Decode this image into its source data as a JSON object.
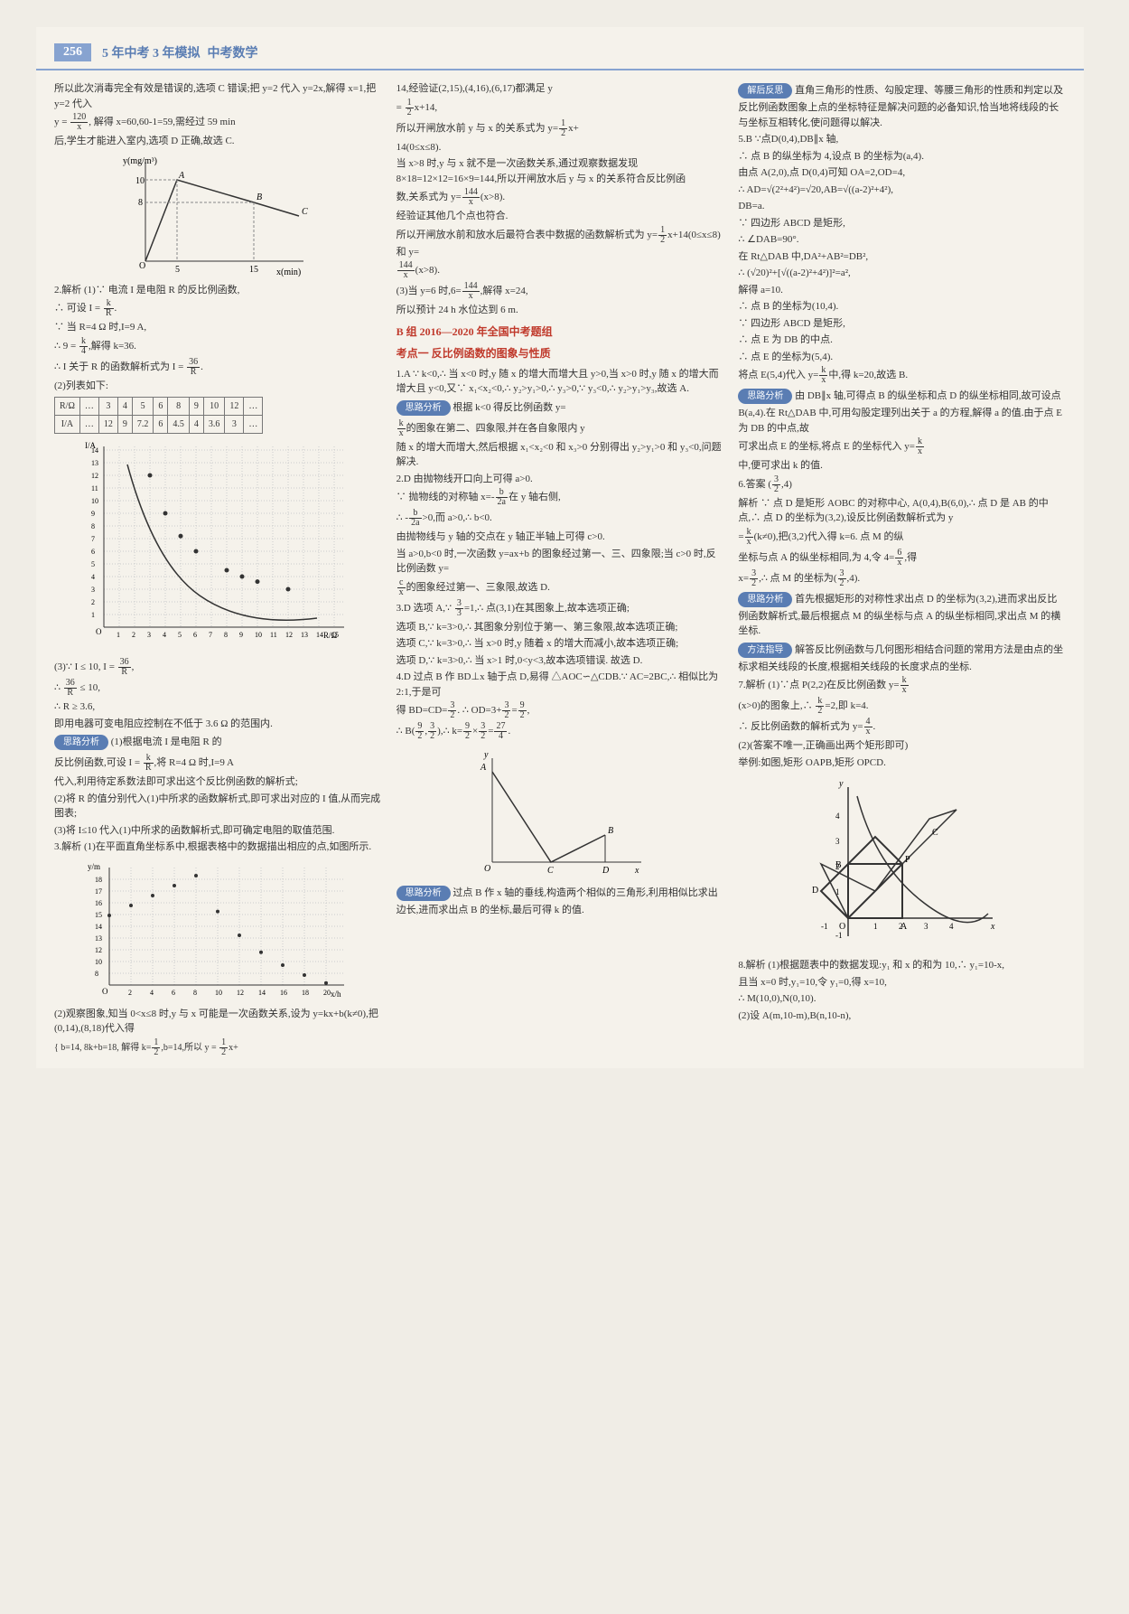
{
  "header": {
    "page_number": "256",
    "title_main": "5 年中考 3 年模拟",
    "title_sub": "中考数学"
  },
  "col1": {
    "p1": "所以此次消毒完全有效是错误的,选项 C 错误;把 y=2 代入 y=2x,解得 x=1,把 y=2 代入",
    "p2_a": "y = ",
    "p2_frac": {
      "num": "120",
      "den": "x"
    },
    "p2_b": ", 解得 x=60,60-1=59,需经过 59 min",
    "p3": "后,学生才能进入室内,选项 D 正确,故选 C.",
    "graph1": {
      "ylabel": "y(mg/m³)",
      "xlabel": "x(min)",
      "ypoints": [
        10,
        8
      ],
      "xticks": [
        5,
        15
      ],
      "labels": [
        "A",
        "B",
        "C"
      ],
      "line_color": "#333",
      "bg": "#f5f2eb",
      "grid_color": "#888"
    },
    "p4": "2.解析 (1)∵ 电流 I 是电阻 R 的反比例函数,",
    "p5_a": "∴ 可设 I = ",
    "p5_frac": {
      "num": "k",
      "den": "R"
    },
    "p5_b": ".",
    "p6": "∵ 当 R=4 Ω 时,I=9 A,",
    "p7_a": "∴ 9 = ",
    "p7_frac": {
      "num": "k",
      "den": "4"
    },
    "p7_b": ",解得 k=36.",
    "p8_a": "∴ I 关于 R 的函数解析式为 I = ",
    "p8_frac": {
      "num": "36",
      "den": "R"
    },
    "p8_b": ".",
    "p9": "(2)列表如下:",
    "table": {
      "headers": [
        "R/Ω",
        "…",
        "3",
        "4",
        "5",
        "6",
        "8",
        "9",
        "10",
        "12",
        "…"
      ],
      "row": [
        "I/A",
        "…",
        "12",
        "9",
        "7.2",
        "6",
        "4.5",
        "4",
        "3.6",
        "3",
        "…"
      ]
    },
    "graph2": {
      "ylabel": "I/A",
      "xlabel": "R/Ω",
      "yticks": [
        1,
        2,
        3,
        4,
        5,
        6,
        7,
        8,
        9,
        10,
        11,
        12,
        13,
        14
      ],
      "xticks": [
        1,
        2,
        3,
        4,
        5,
        6,
        7,
        8,
        9,
        10,
        11,
        12,
        13,
        14,
        15
      ],
      "points": [
        [
          3,
          12
        ],
        [
          4,
          9
        ],
        [
          5,
          7.2
        ],
        [
          6,
          6
        ],
        [
          8,
          4.5
        ],
        [
          9,
          4
        ],
        [
          10,
          3.6
        ],
        [
          12,
          3
        ]
      ],
      "curve_color": "#333",
      "grid_color": "#ccc"
    },
    "p10_a": "(3)∵ I ≤ 10, I = ",
    "p10_frac": {
      "num": "36",
      "den": "R"
    },
    "p10_b": ",",
    "p11_a": "∴ ",
    "p11_frac": {
      "num": "36",
      "den": "R"
    },
    "p11_b": " ≤ 10,",
    "p12": "∴ R ≥ 3.6,",
    "p13": "即用电器可变电阻应控制在不低于 3.6 Ω 的范围内.",
    "pill1": "思路分析",
    "p14": "(1)根据电流 I 是电阻 R 的",
    "p15_a": "反比例函数,可设 I = ",
    "p15_frac": {
      "num": "k",
      "den": "R"
    },
    "p15_b": ",将 R=4 Ω 时,I=9 A",
    "p16": "代入,利用待定系数法即可求出这个反比例函数的解析式;",
    "p17": "(2)将 R 的值分别代入(1)中所求的函数解析式,即可求出对应的 I 值,从而完成图表;",
    "p18": "(3)将 I≤10 代入(1)中所求的函数解析式,即可确定电阻的取值范围.",
    "p19": "3.解析 (1)在平面直角坐标系中,根据表格中的数据描出相应的点,如图所示.",
    "graph3": {
      "ylabel": "y/m",
      "xlabel": "x/h",
      "yticks": [
        8,
        10,
        12,
        13,
        14,
        15,
        16,
        17,
        18
      ],
      "xticks": [
        2,
        4,
        6,
        8,
        10,
        12,
        14,
        16,
        18,
        20
      ],
      "grid_color": "#ccc",
      "line_color": "#333"
    },
    "p20": "(2)观察图象,知当 0<x≤8 时,y 与 x 可能是一次函数关系,设为 y=kx+b(k≠0),把(0,14),(8,18)代入得",
    "p21_a": "{ b=14, 8k+b=18, 解得 k=",
    "p21_frac": {
      "num": "1",
      "den": "2"
    },
    "p21_b": ",b=14,所以 y = ",
    "p21_frac2": {
      "num": "1",
      "den": "2"
    },
    "p21_c": "x+"
  },
  "col2": {
    "p1": "14,经验证(2,15),(4,16),(6,17)都满足 y",
    "p2_a": "= ",
    "p2_frac": {
      "num": "1",
      "den": "2"
    },
    "p2_b": "x+14,",
    "p3_a": "所以开闸放水前 y 与 x 的关系式为 y=",
    "p3_frac": {
      "num": "1",
      "den": "2"
    },
    "p3_b": "x+",
    "p4": "14(0≤x≤8).",
    "p5": "当 x>8 时,y 与 x 就不是一次函数关系,通过观察数据发现 8×18=12×12=16×9=144,所以开闸放水后 y 与 x 的关系符合反比例函",
    "p6_a": "数,关系式为 y=",
    "p6_frac": {
      "num": "144",
      "den": "x"
    },
    "p6_b": "(x>8).",
    "p7": "经验证其他几个点也符合.",
    "p8_a": "所以开闸放水前和放水后最符合表中数据的函数解析式为 y=",
    "p8_frac": {
      "num": "1",
      "den": "2"
    },
    "p8_b": "x+14(0≤x≤8) 和 y=",
    "p9_frac": {
      "num": "144",
      "den": "x"
    },
    "p9_b": "(x>8).",
    "p10_a": "(3)当 y=6 时,6=",
    "p10_frac": {
      "num": "144",
      "den": "x"
    },
    "p10_b": ",解得 x=24,",
    "p11": "所以预计 24 h 水位达到 6 m.",
    "section_b": "B 组  2016—2020 年全国中考题组",
    "section_b2": "考点一  反比例函数的图象与性质",
    "p12": "1.A  ∵ k<0,∴ 当 x<0 时,y 随 x 的增大而增大且 y>0,当 x>0 时,y 随 x 的增大而增大且 y<0,又∵ x₁<x₂<0,∴ y₂>y₁>0,∴ y₃>0,∵ y₃<0,∴ y₂>y₁>y₃,故选 A.",
    "pill2": "思路分析",
    "p13_a": "根据 k<0 得反比例函数 y=",
    "p14_frac": {
      "num": "k",
      "den": "x"
    },
    "p14_b": "的图象在第二、四象限,并在各自象限内 y",
    "p15": "随 x 的增大而增大,然后根据 x₁<x₂<0 和 x₃>0 分别得出 y₂>y₁>0 和 y₃<0,问题解决.",
    "p16": "2.D  由抛物线开口向上可得 a>0.",
    "p17_a": "∵ 抛物线的对称轴 x=-",
    "p17_frac": {
      "num": "b",
      "den": "2a"
    },
    "p17_b": "在 y 轴右侧,",
    "p18_a": "∴ -",
    "p18_frac": {
      "num": "b",
      "den": "2a"
    },
    "p18_b": ">0,而 a>0,∴ b<0.",
    "p19": "由抛物线与 y 轴的交点在 y 轴正半轴上可得 c>0.",
    "p20_a": "当 a>0,b<0 时,一次函数 y=ax+b 的图象经过第一、三、四象限;当 c>0 时,反比例函数 y=",
    "p21_frac": {
      "num": "c",
      "den": "x"
    },
    "p21_b": "的图象经过第一、三象限,故选 D.",
    "p22_a": "3.D  选项 A,∵ ",
    "p22_frac": {
      "num": "3",
      "den": "3"
    },
    "p22_b": "=1,∴ 点(3,1)在其图象上,故本选项正确;",
    "p23": "选项 B,∵ k=3>0,∴ 其图象分别位于第一、第三象限,故本选项正确;",
    "p24": "选项 C,∵ k=3>0,∴ 当 x>0 时,y 随着 x 的增大而减小,故本选项正确;",
    "p25": "选项 D,∵ k=3>0,∴ 当 x>1 时,0<y<3,故本选项错误. 故选 D.",
    "p26": "4.D  过点 B 作 BD⊥x 轴于点 D,易得 △AOC∽△CDB.∵ AC=2BC,∴ 相似比为 2:1,于是可",
    "p27_a": "得 BD=CD=",
    "p27_frac": {
      "num": "3",
      "den": "2"
    },
    "p27_b": ". ∴ OD=3+",
    "p27_frac2": {
      "num": "3",
      "den": "2"
    },
    "p27_c": "=",
    "p27_frac3": {
      "num": "9",
      "den": "2"
    },
    "p27_d": ",",
    "p28_a": "∴ B(",
    "p28_frac": {
      "num": "9",
      "den": "2"
    },
    "p28_b": ",",
    "p28_frac2": {
      "num": "3",
      "den": "2"
    },
    "p28_c": "),∴ k=",
    "p28_frac3": {
      "num": "9",
      "den": "2"
    },
    "p28_d": "×",
    "p28_frac4": {
      "num": "3",
      "den": "2"
    },
    "p28_e": "=",
    "p28_frac5": {
      "num": "27",
      "den": "4"
    },
    "p28_f": ".",
    "graph4": {
      "labels": [
        "A",
        "B",
        "O",
        "C",
        "D",
        "x",
        "y"
      ],
      "line_color": "#333"
    },
    "pill3": "思路分析",
    "p29": "过点 B 作 x 轴的垂线,构造两个相似的三角形,利用相似比求出边长,进而求出点 B 的坐标,最后可得 k 的值."
  },
  "col3": {
    "pill1": "解后反思",
    "p1": "直角三角形的性质、勾股定理、等腰三角形的性质和判定以及反比例函数图象上点的坐标特征是解决问题的必备知识,恰当地将线段的长与坐标互相转化,使问题得以解决.",
    "p2": "5.B  ∵点D(0,4),DB∥x 轴,",
    "p3": "∴ 点 B 的纵坐标为 4,设点 B 的坐标为(a,4).",
    "p4": "由点 A(2,0),点 D(0,4)可知 OA=2,OD=4,",
    "p5": "∴ AD=√(2²+4²)=√20,AB=√((a-2)²+4²),",
    "p6": "DB=a.",
    "p7": "∵ 四边形 ABCD 是矩形,",
    "p8": "∴ ∠DAB=90°.",
    "p9": "在 Rt△DAB 中,DA²+AB²=DB²,",
    "p10": "∴ (√20)²+[√((a-2)²+4²)]²=a²,",
    "p11": "解得 a=10.",
    "p12": "∴ 点 B 的坐标为(10,4).",
    "p13": "∵ 四边形 ABCD 是矩形,",
    "p14": "∴ 点 E 为 DB 的中点.",
    "p15": "∴ 点 E 的坐标为(5,4).",
    "p16_a": "将点 E(5,4)代入 y=",
    "p16_frac": {
      "num": "k",
      "den": "x"
    },
    "p16_b": "中,得 k=20,故选 B.",
    "pill2": "思路分析",
    "p17": "由 DB∥x 轴,可得点 B 的纵坐标和点 D 的纵坐标相同,故可设点 B(a,4).在 Rt△DAB 中,可用勾股定理列出关于 a 的方程,解得 a 的值.由于点 E 为 DB 的中点,故",
    "p18_a": "可求出点 E 的坐标,将点 E 的坐标代入 y=",
    "p18_frac": {
      "num": "k",
      "den": "x"
    },
    "p19": "中,便可求出 k 的值.",
    "p20_a": "6.答案  (",
    "p20_frac": {
      "num": "3",
      "den": "2"
    },
    "p20_b": ",4)",
    "p21": "解析 ∵ 点 D 是矩形 AOBC 的对称中心, A(0,4),B(6,0),∴ 点 D 是 AB 的中点,∴ 点 D 的坐标为(3,2),设反比例函数解析式为 y",
    "p22_a": "=",
    "p22_frac": {
      "num": "k",
      "den": "x"
    },
    "p22_b": "(k≠0),把(3,2)代入得 k=6. 点 M 的纵",
    "p23_a": "坐标与点 A 的纵坐标相同,为 4,令 4=",
    "p23_frac": {
      "num": "6",
      "den": "x"
    },
    "p23_b": ",得",
    "p24_a": "x=",
    "p24_frac": {
      "num": "3",
      "den": "2"
    },
    "p24_b": ",∴ 点 M 的坐标为(",
    "p24_frac2": {
      "num": "3",
      "den": "2"
    },
    "p24_c": ",4).",
    "pill3": "思路分析",
    "p25": "首先根据矩形的对称性求出点 D 的坐标为(3,2),进而求出反比例函数解析式,最后根据点 M 的纵坐标与点 A 的纵坐标相同,求出点 M 的横坐标.",
    "pill4": "方法指导",
    "p26": "解答反比例函数与几何图形相结合问题的常用方法是由点的坐标求相关线段的长度,根据相关线段的长度求点的坐标.",
    "p27_a": "7.解析 (1)∵点 P(2,2)在反比例函数 y=",
    "p27_frac": {
      "num": "k",
      "den": "x"
    },
    "p28_a": "(x>0)的图象上,∴ ",
    "p28_frac": {
      "num": "k",
      "den": "2"
    },
    "p28_b": "=2,即 k=4.",
    "p29_a": "∴ 反比例函数的解析式为 y=",
    "p29_frac": {
      "num": "4",
      "den": "x"
    },
    "p29_b": ".",
    "p30": "(2)(答案不唯一,正确画出两个矩形即可)",
    "p31": "举例:如图,矩形 OAPB,矩形 OPCD.",
    "graph5": {
      "labels": [
        "y",
        "x",
        "O",
        "A",
        "B",
        "C",
        "D",
        "P",
        "1",
        "2",
        "3",
        "4",
        "-1"
      ],
      "rect_color": "#333",
      "curve_color": "#333",
      "xticks": [
        -1,
        1,
        2,
        3,
        4
      ],
      "yticks": [
        -1,
        1,
        2,
        3,
        4
      ]
    },
    "p32": "8.解析 (1)根据题表中的数据发现:y₁ 和 x 的和为 10,∴ y₁=10-x,",
    "p33": "且当 x=0 时,y₁=10,令 y₁=0,得 x=10,",
    "p34": "∴ M(10,0),N(0,10).",
    "p35": "(2)设 A(m,10-m),B(n,10-n),"
  }
}
